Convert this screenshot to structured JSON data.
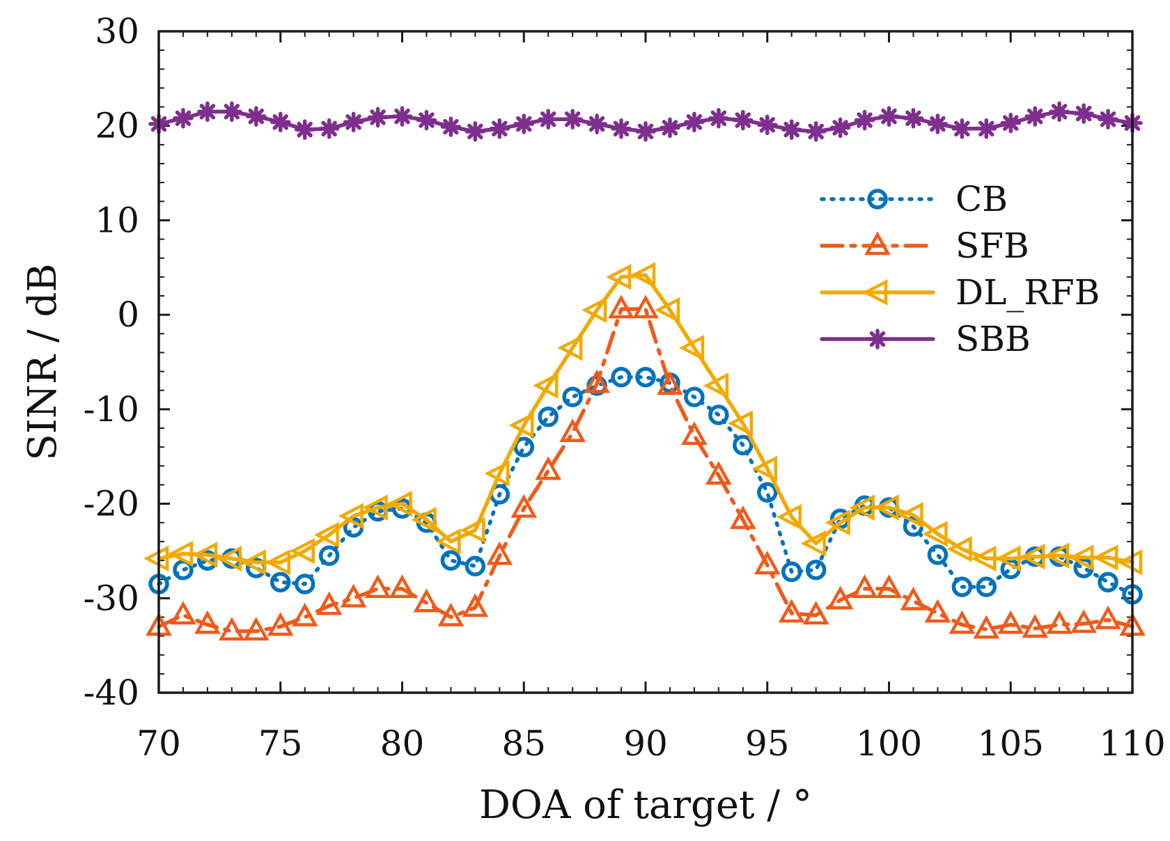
{
  "chart_data": {
    "type": "line",
    "title": "",
    "xlabel": "DOA of target / °",
    "ylabel": "SINR / dB",
    "xlim": [
      70,
      110
    ],
    "ylim": [
      -40,
      30
    ],
    "xticks": [
      70,
      75,
      80,
      85,
      90,
      95,
      100,
      105,
      110
    ],
    "yticks": [
      -40,
      -30,
      -20,
      -10,
      0,
      10,
      20,
      30
    ],
    "grid": false,
    "legend_position": "right",
    "x": [
      70,
      71,
      72,
      73,
      74,
      75,
      76,
      77,
      78,
      79,
      80,
      81,
      82,
      83,
      84,
      85,
      86,
      87,
      88,
      89,
      90,
      91,
      92,
      93,
      94,
      95,
      96,
      97,
      98,
      99,
      100,
      101,
      102,
      103,
      104,
      105,
      106,
      107,
      108,
      109,
      110
    ],
    "series": [
      {
        "name": "CB",
        "color": "#0072BD",
        "line_style": "dotted",
        "marker": "circle",
        "values": [
          -28.5,
          -27.0,
          -26.0,
          -25.8,
          -26.8,
          -28.3,
          -28.5,
          -25.5,
          -22.5,
          -20.8,
          -20.5,
          -22.0,
          -26.0,
          -26.6,
          -19.0,
          -14.0,
          -10.8,
          -8.7,
          -7.5,
          -6.6,
          -6.6,
          -7.2,
          -8.7,
          -10.6,
          -13.8,
          -18.8,
          -27.2,
          -27.0,
          -21.6,
          -20.2,
          -20.4,
          -22.4,
          -25.4,
          -28.8,
          -28.8,
          -26.9,
          -25.6,
          -25.6,
          -26.8,
          -28.3,
          -29.6
        ]
      },
      {
        "name": "SFB",
        "color": "#F05A1A",
        "line_style": "dashed",
        "marker": "triangle-up",
        "values": [
          -33.0,
          -31.8,
          -32.8,
          -33.5,
          -33.5,
          -33.0,
          -32.0,
          -30.8,
          -30.0,
          -29.0,
          -29.0,
          -30.5,
          -32.0,
          -31.0,
          -25.5,
          -20.5,
          -16.5,
          -12.5,
          -7.3,
          0.6,
          0.6,
          -7.5,
          -12.8,
          -17.0,
          -21.7,
          -26.5,
          -31.6,
          -31.8,
          -30.2,
          -29.0,
          -29.0,
          -30.3,
          -31.6,
          -32.8,
          -33.3,
          -32.8,
          -33.2,
          -32.8,
          -32.7,
          -32.3,
          -33.0
        ]
      },
      {
        "name": "DL_RFB",
        "color": "#F2A900",
        "line_style": "solid",
        "marker": "triangle-left",
        "values": [
          -25.8,
          -25.3,
          -25.4,
          -25.8,
          -26.2,
          -26.2,
          -25.0,
          -23.3,
          -21.3,
          -20.4,
          -20.0,
          -21.7,
          -24.0,
          -22.8,
          -16.8,
          -11.7,
          -7.5,
          -3.5,
          0.5,
          4.0,
          4.2,
          0.5,
          -3.5,
          -7.5,
          -11.5,
          -16.3,
          -21.4,
          -24.2,
          -22.0,
          -20.4,
          -20.4,
          -21.2,
          -23.2,
          -24.8,
          -25.8,
          -25.8,
          -25.6,
          -25.5,
          -25.7,
          -25.7,
          -26.2
        ]
      },
      {
        "name": "SBB",
        "color": "#7E2F8E",
        "line_style": "solid",
        "marker": "asterisk",
        "values": [
          20.2,
          20.8,
          21.5,
          21.5,
          21.0,
          20.4,
          19.6,
          19.7,
          20.4,
          20.9,
          21.0,
          20.6,
          19.9,
          19.4,
          19.7,
          20.2,
          20.7,
          20.7,
          20.2,
          19.7,
          19.4,
          19.8,
          20.4,
          20.8,
          20.6,
          20.1,
          19.6,
          19.4,
          19.8,
          20.6,
          21.0,
          20.8,
          20.2,
          19.7,
          19.7,
          20.3,
          21.0,
          21.5,
          21.3,
          20.7,
          20.3
        ]
      }
    ]
  }
}
